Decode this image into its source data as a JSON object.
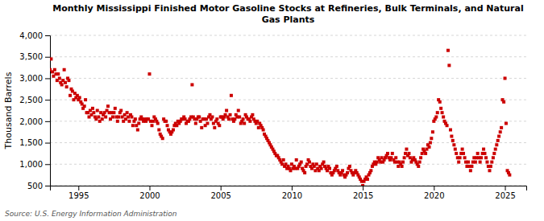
{
  "chart_data": {
    "type": "scatter",
    "title": "Monthly Mississippi Finished Motor Gasoline Stocks at Refineries, Bulk Terminals, and Natural\nGas Plants",
    "ylabel": "Thousand Barrels",
    "annotations": [
      "Source: U.S. Energy Information Administration"
    ],
    "color": "#cc0000",
    "marker": "square",
    "grid": true,
    "xlim": [
      1993.0,
      2026.5
    ],
    "xticks": [
      1995,
      2000,
      2005,
      2010,
      2015,
      2020,
      2025
    ],
    "ylim": [
      500,
      4000
    ],
    "yticks": [
      500,
      {
        "value": 1000,
        "label": "1,000"
      },
      {
        "value": 1500,
        "label": "1,500"
      },
      {
        "value": 2000,
        "label": "2,000"
      },
      {
        "value": 2500,
        "label": "2,500"
      },
      {
        "value": 3000,
        "label": "3,000"
      },
      {
        "value": 3500,
        "label": "3,500"
      },
      {
        "value": 4000,
        "label": "4,000"
      }
    ],
    "x": [
      1993.0,
      1993.08,
      1993.17,
      1993.25,
      1993.33,
      1993.42,
      1993.5,
      1993.58,
      1993.67,
      1993.75,
      1993.83,
      1993.92,
      1994.0,
      1994.08,
      1994.17,
      1994.25,
      1994.33,
      1994.42,
      1994.5,
      1994.58,
      1994.67,
      1994.75,
      1994.83,
      1994.92,
      1995.0,
      1995.08,
      1995.17,
      1995.25,
      1995.33,
      1995.42,
      1995.5,
      1995.58,
      1995.67,
      1995.75,
      1995.83,
      1995.92,
      1996.0,
      1996.08,
      1996.17,
      1996.25,
      1996.33,
      1996.42,
      1996.5,
      1996.58,
      1996.67,
      1996.75,
      1996.83,
      1996.92,
      1997.0,
      1997.08,
      1997.17,
      1997.25,
      1997.33,
      1997.42,
      1997.5,
      1997.58,
      1997.67,
      1997.75,
      1997.83,
      1997.92,
      1998.0,
      1998.08,
      1998.17,
      1998.25,
      1998.33,
      1998.42,
      1998.5,
      1998.58,
      1998.67,
      1998.75,
      1998.83,
      1998.92,
      1999.0,
      1999.08,
      1999.17,
      1999.25,
      1999.33,
      1999.42,
      1999.5,
      1999.58,
      1999.67,
      1999.75,
      1999.83,
      1999.92,
      2000.0,
      2000.08,
      2000.17,
      2000.25,
      2000.33,
      2000.42,
      2000.5,
      2000.58,
      2000.67,
      2000.75,
      2000.83,
      2000.92,
      2001.0,
      2001.08,
      2001.17,
      2001.25,
      2001.33,
      2001.42,
      2001.5,
      2001.58,
      2001.67,
      2001.75,
      2001.83,
      2001.92,
      2002.0,
      2002.08,
      2002.17,
      2002.25,
      2002.33,
      2002.42,
      2002.5,
      2002.58,
      2002.67,
      2002.75,
      2002.83,
      2002.92,
      2003.0,
      2003.08,
      2003.17,
      2003.25,
      2003.33,
      2003.42,
      2003.5,
      2003.58,
      2003.67,
      2003.75,
      2003.83,
      2003.92,
      2004.0,
      2004.08,
      2004.17,
      2004.25,
      2004.33,
      2004.42,
      2004.5,
      2004.58,
      2004.67,
      2004.75,
      2004.83,
      2004.92,
      2005.0,
      2005.08,
      2005.17,
      2005.25,
      2005.33,
      2005.42,
      2005.5,
      2005.58,
      2005.67,
      2005.75,
      2005.83,
      2005.92,
      2006.0,
      2006.08,
      2006.17,
      2006.25,
      2006.33,
      2006.42,
      2006.5,
      2006.58,
      2006.67,
      2006.75,
      2006.83,
      2006.92,
      2007.0,
      2007.08,
      2007.17,
      2007.25,
      2007.33,
      2007.42,
      2007.5,
      2007.58,
      2007.67,
      2007.75,
      2007.83,
      2007.92,
      2008.0,
      2008.08,
      2008.17,
      2008.25,
      2008.33,
      2008.42,
      2008.5,
      2008.58,
      2008.67,
      2008.75,
      2008.83,
      2008.92,
      2009.0,
      2009.08,
      2009.17,
      2009.25,
      2009.33,
      2009.42,
      2009.5,
      2009.58,
      2009.67,
      2009.75,
      2009.83,
      2009.92,
      2010.0,
      2010.08,
      2010.17,
      2010.25,
      2010.33,
      2010.42,
      2010.5,
      2010.58,
      2010.67,
      2010.75,
      2010.83,
      2010.92,
      2011.0,
      2011.08,
      2011.17,
      2011.25,
      2011.33,
      2011.42,
      2011.5,
      2011.58,
      2011.67,
      2011.75,
      2011.83,
      2011.92,
      2012.0,
      2012.08,
      2012.17,
      2012.25,
      2012.33,
      2012.42,
      2012.5,
      2012.58,
      2012.67,
      2012.75,
      2012.83,
      2012.92,
      2013.0,
      2013.08,
      2013.17,
      2013.25,
      2013.33,
      2013.42,
      2013.5,
      2013.58,
      2013.67,
      2013.75,
      2013.83,
      2013.92,
      2014.0,
      2014.08,
      2014.17,
      2014.25,
      2014.33,
      2014.42,
      2014.5,
      2014.58,
      2014.67,
      2014.75,
      2014.83,
      2014.92,
      2015.0,
      2015.08,
      2015.17,
      2015.25,
      2015.33,
      2015.42,
      2015.5,
      2015.58,
      2015.67,
      2015.75,
      2015.83,
      2015.92,
      2016.0,
      2016.08,
      2016.17,
      2016.25,
      2016.33,
      2016.42,
      2016.5,
      2016.58,
      2016.67,
      2016.75,
      2016.83,
      2016.92,
      2017.0,
      2017.08,
      2017.17,
      2017.25,
      2017.33,
      2017.42,
      2017.5,
      2017.58,
      2017.67,
      2017.75,
      2017.83,
      2017.92,
      2018.0,
      2018.08,
      2018.17,
      2018.25,
      2018.33,
      2018.42,
      2018.5,
      2018.58,
      2018.67,
      2018.75,
      2018.83,
      2018.92,
      2019.0,
      2019.08,
      2019.17,
      2019.25,
      2019.33,
      2019.42,
      2019.5,
      2019.58,
      2019.67,
      2019.75,
      2019.83,
      2019.92,
      2020.0,
      2020.08,
      2020.17,
      2020.25,
      2020.33,
      2020.42,
      2020.5,
      2020.58,
      2020.67,
      2020.75,
      2020.83,
      2020.92,
      2021.0,
      2021.08,
      2021.17,
      2021.25,
      2021.33,
      2021.42,
      2021.5,
      2021.58,
      2021.67,
      2021.75,
      2021.83,
      2021.92,
      2022.0,
      2022.08,
      2022.17,
      2022.25,
      2022.33,
      2022.42,
      2022.5,
      2022.58,
      2022.67,
      2022.75,
      2022.83,
      2022.92,
      2023.0,
      2023.08,
      2023.17,
      2023.25,
      2023.33,
      2023.42,
      2023.5,
      2023.58,
      2023.67,
      2023.75,
      2023.83,
      2023.92,
      2024.0,
      2024.08,
      2024.17,
      2024.25,
      2024.33,
      2024.42,
      2024.5,
      2024.58,
      2024.67,
      2024.75,
      2024.83,
      2024.92,
      2025.0,
      2025.08,
      2025.17,
      2025.25,
      2025.33
    ],
    "values": [
      3200,
      3450,
      3150,
      3050,
      3200,
      3100,
      2950,
      3100,
      3000,
      2900,
      2850,
      2950,
      3200,
      2900,
      2800,
      3000,
      2950,
      2600,
      2750,
      2700,
      2500,
      2650,
      2550,
      2600,
      2500,
      2550,
      2450,
      2400,
      2300,
      2350,
      2500,
      2200,
      2200,
      2100,
      2250,
      2150,
      2300,
      2200,
      2100,
      2050,
      2250,
      2100,
      2000,
      2200,
      2050,
      2150,
      2200,
      2100,
      2250,
      2350,
      2200,
      2050,
      2200,
      2100,
      2200,
      2300,
      2100,
      2000,
      2100,
      2200,
      2250,
      2100,
      2000,
      2150,
      2050,
      2200,
      2100,
      2000,
      2150,
      2100,
      1900,
      2000,
      2050,
      1900,
      1800,
      1950,
      2050,
      2100,
      2050,
      2000,
      2050,
      2000,
      2050,
      2050,
      3100,
      2000,
      1900,
      2000,
      2100,
      2050,
      2000,
      1950,
      1800,
      1700,
      1650,
      1600,
      2050,
      2000,
      2000,
      1900,
      1800,
      1750,
      1700,
      1750,
      1800,
      1900,
      1950,
      1900,
      2000,
      1950,
      2000,
      2050,
      2050,
      2100,
      2050,
      1950,
      2000,
      2000,
      2050,
      2100,
      2850,
      2100,
      2050,
      1950,
      2050,
      2100,
      2100,
      2000,
      1850,
      2050,
      2050,
      1900,
      2050,
      1950,
      2100,
      2150,
      2050,
      2100,
      1950,
      1850,
      2000,
      2050,
      1950,
      1900,
      2100,
      2100,
      2050,
      2100,
      2150,
      2250,
      2100,
      2050,
      2150,
      2600,
      2050,
      2000,
      2050,
      2150,
      2100,
      2250,
      2100,
      1950,
      2000,
      2050,
      1950,
      2150,
      2100,
      2050,
      2050,
      2000,
      2100,
      2150,
      2050,
      2000,
      1950,
      2000,
      1850,
      1950,
      1900,
      1850,
      1800,
      1700,
      1650,
      1600,
      1550,
      1500,
      1450,
      1400,
      1350,
      1300,
      1250,
      1200,
      1200,
      1150,
      1100,
      1050,
      1000,
      1100,
      950,
      1000,
      900,
      950,
      900,
      850,
      1000,
      900,
      950,
      900,
      1100,
      900,
      950,
      1000,
      1050,
      900,
      850,
      800,
      950,
      1000,
      1100,
      1050,
      950,
      900,
      1000,
      950,
      850,
      1000,
      900,
      850,
      950,
      900,
      1000,
      1050,
      950,
      900,
      850,
      950,
      900,
      800,
      750,
      800,
      850,
      900,
      950,
      850,
      800,
      750,
      800,
      850,
      750,
      700,
      750,
      800,
      900,
      950,
      850,
      800,
      750,
      800,
      850,
      800,
      750,
      700,
      650,
      600,
      500,
      600,
      650,
      700,
      650,
      750,
      800,
      850,
      950,
      1000,
      1050,
      1000,
      1050,
      1150,
      1100,
      1050,
      1150,
      1050,
      1100,
      1150,
      1200,
      1250,
      1150,
      1100,
      1150,
      1250,
      1100,
      1050,
      1150,
      1050,
      950,
      1050,
      1000,
      950,
      1050,
      1150,
      1250,
      1350,
      1200,
      1250,
      1150,
      1050,
      1100,
      1150,
      1100,
      1050,
      1000,
      950,
      1050,
      1150,
      1250,
      1350,
      1300,
      1250,
      1350,
      1450,
      1400,
      1500,
      1600,
      1750,
      2000,
      2050,
      2100,
      2200,
      2500,
      2450,
      2300,
      2200,
      2100,
      2000,
      1950,
      1900,
      3650,
      3300,
      1800,
      1650,
      1550,
      1450,
      1350,
      1250,
      1150,
      1050,
      1150,
      1250,
      1350,
      1250,
      1150,
      1050,
      950,
      1050,
      950,
      850,
      950,
      1050,
      1150,
      1050,
      1150,
      1250,
      1150,
      1050,
      1150,
      1250,
      1350,
      1250,
      1150,
      1050,
      950,
      850,
      950,
      1050,
      1150,
      1250,
      1350,
      1450,
      1550,
      1650,
      1750,
      1850,
      2500,
      2450,
      3000,
      1950,
      850,
      800,
      750
    ]
  }
}
